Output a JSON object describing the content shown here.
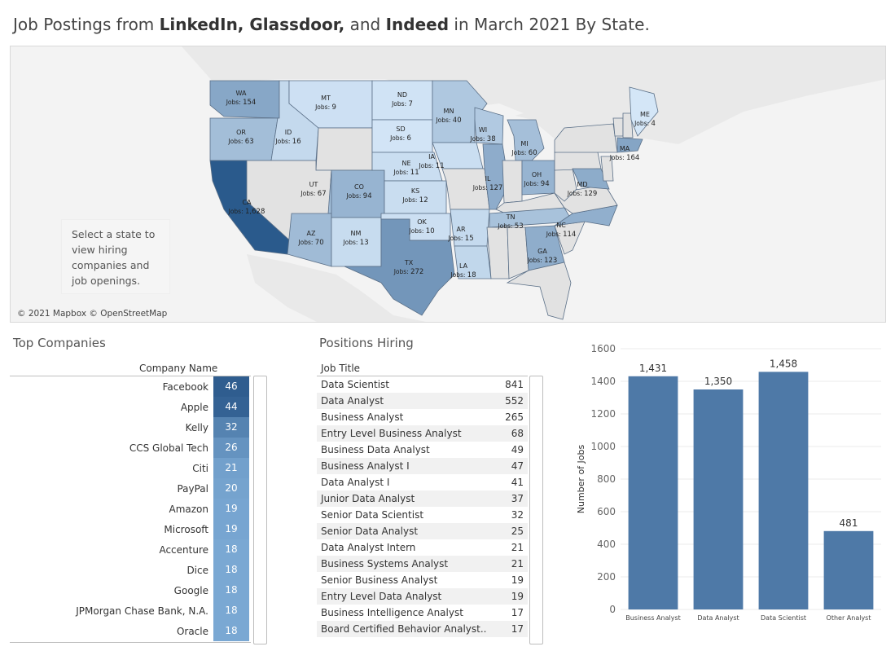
{
  "title": {
    "p1": "Job Postings from ",
    "b1": "LinkedIn, Glassdoor,",
    "p2": " and ",
    "b2": "Indeed",
    "p3": " in March 2021 By State."
  },
  "map": {
    "hint": "Select a state to view hiring companies and job openings.",
    "attribution": "© 2021 Mapbox © OpenStreetMap",
    "jobs_prefix": "Jobs: ",
    "no_data_color": "#e2e2e2",
    "color_low": "#d4e6f7",
    "color_high": "#2a5a8c",
    "states": [
      {
        "abbr": "WA",
        "jobs": "154"
      },
      {
        "abbr": "OR",
        "jobs": "63"
      },
      {
        "abbr": "CA",
        "jobs": "1,628"
      },
      {
        "abbr": "ID",
        "jobs": "16"
      },
      {
        "abbr": "MT",
        "jobs": "9"
      },
      {
        "abbr": "WY",
        "jobs": null
      },
      {
        "abbr": "NV",
        "jobs": null
      },
      {
        "abbr": "UT",
        "jobs": "67"
      },
      {
        "abbr": "AZ",
        "jobs": "70"
      },
      {
        "abbr": "CO",
        "jobs": "94"
      },
      {
        "abbr": "NM",
        "jobs": "13"
      },
      {
        "abbr": "ND",
        "jobs": "7"
      },
      {
        "abbr": "SD",
        "jobs": "6"
      },
      {
        "abbr": "NE",
        "jobs": "11"
      },
      {
        "abbr": "KS",
        "jobs": "12"
      },
      {
        "abbr": "OK",
        "jobs": "10"
      },
      {
        "abbr": "TX",
        "jobs": "272"
      },
      {
        "abbr": "MN",
        "jobs": "40"
      },
      {
        "abbr": "IA",
        "jobs": "11"
      },
      {
        "abbr": "MO",
        "jobs": null
      },
      {
        "abbr": "AR",
        "jobs": "15"
      },
      {
        "abbr": "LA",
        "jobs": "18"
      },
      {
        "abbr": "WI",
        "jobs": "38"
      },
      {
        "abbr": "IL",
        "jobs": "127"
      },
      {
        "abbr": "MI",
        "jobs": "60"
      },
      {
        "abbr": "IN",
        "jobs": null
      },
      {
        "abbr": "OH",
        "jobs": "94"
      },
      {
        "abbr": "KY",
        "jobs": null
      },
      {
        "abbr": "TN",
        "jobs": "53"
      },
      {
        "abbr": "MS",
        "jobs": null
      },
      {
        "abbr": "AL",
        "jobs": null
      },
      {
        "abbr": "GA",
        "jobs": "123"
      },
      {
        "abbr": "FL",
        "jobs": null
      },
      {
        "abbr": "SC",
        "jobs": null
      },
      {
        "abbr": "NC",
        "jobs": "114"
      },
      {
        "abbr": "VA",
        "jobs": null
      },
      {
        "abbr": "WV",
        "jobs": null
      },
      {
        "abbr": "PA",
        "jobs": null
      },
      {
        "abbr": "NY",
        "jobs": null
      },
      {
        "abbr": "MD",
        "jobs": "129"
      },
      {
        "abbr": "NJ",
        "jobs": null
      },
      {
        "abbr": "VT",
        "jobs": null
      },
      {
        "abbr": "NH",
        "jobs": null
      },
      {
        "abbr": "MA",
        "jobs": "164"
      },
      {
        "abbr": "ME",
        "jobs": "4"
      }
    ]
  },
  "companies": {
    "section_title": "Top Companies",
    "column_header": "Company Name",
    "rows": [
      {
        "name": "Facebook",
        "count": "46"
      },
      {
        "name": "Apple",
        "count": "44"
      },
      {
        "name": "Kelly",
        "count": "32"
      },
      {
        "name": "CCS Global Tech",
        "count": "26"
      },
      {
        "name": "Citi",
        "count": "21"
      },
      {
        "name": "PayPal",
        "count": "20"
      },
      {
        "name": "Amazon",
        "count": "19"
      },
      {
        "name": "Microsoft",
        "count": "19"
      },
      {
        "name": "Accenture",
        "count": "18"
      },
      {
        "name": "Dice",
        "count": "18"
      },
      {
        "name": "Google",
        "count": "18"
      },
      {
        "name": "JPMorgan Chase Bank, N.A.",
        "count": "18"
      },
      {
        "name": "Oracle",
        "count": "18"
      }
    ]
  },
  "positions": {
    "section_title": "Positions Hiring",
    "column_header": "Job Title",
    "rows": [
      {
        "title": "Data Scientist",
        "count": "841"
      },
      {
        "title": "Data Analyst",
        "count": "552"
      },
      {
        "title": "Business Analyst",
        "count": "265"
      },
      {
        "title": "Entry Level Business Analyst",
        "count": "68"
      },
      {
        "title": "Business Data Analyst",
        "count": "49"
      },
      {
        "title": "Business Analyst I",
        "count": "47"
      },
      {
        "title": "Data Analyst I",
        "count": "41"
      },
      {
        "title": "Junior Data Analyst",
        "count": "37"
      },
      {
        "title": "Senior Data Scientist",
        "count": "32"
      },
      {
        "title": "Senior Data Analyst",
        "count": "25"
      },
      {
        "title": "Data Analyst Intern",
        "count": "21"
      },
      {
        "title": "Business Systems Analyst",
        "count": "21"
      },
      {
        "title": "Senior Business Analyst",
        "count": "19"
      },
      {
        "title": "Entry Level Data Analyst",
        "count": "19"
      },
      {
        "title": "Business Intelligence Analyst",
        "count": "17"
      },
      {
        "title": "Board Certified Behavior Analyst..",
        "count": "17"
      }
    ]
  },
  "chart_data": {
    "type": "bar",
    "categories": [
      "Business Analyst",
      "Data Analyst",
      "Data Scientist",
      "Other Analyst"
    ],
    "values": [
      1431,
      1350,
      1458,
      481
    ],
    "value_labels": [
      "1,431",
      "1,350",
      "1,458",
      "481"
    ],
    "title": "",
    "xlabel": "",
    "ylabel": "Number of Jobs",
    "ylim": [
      0,
      1600
    ],
    "yticks": [
      0,
      200,
      400,
      600,
      800,
      1000,
      1200,
      1400,
      1600
    ],
    "bar_color": "#4e79a7",
    "grid": true
  }
}
